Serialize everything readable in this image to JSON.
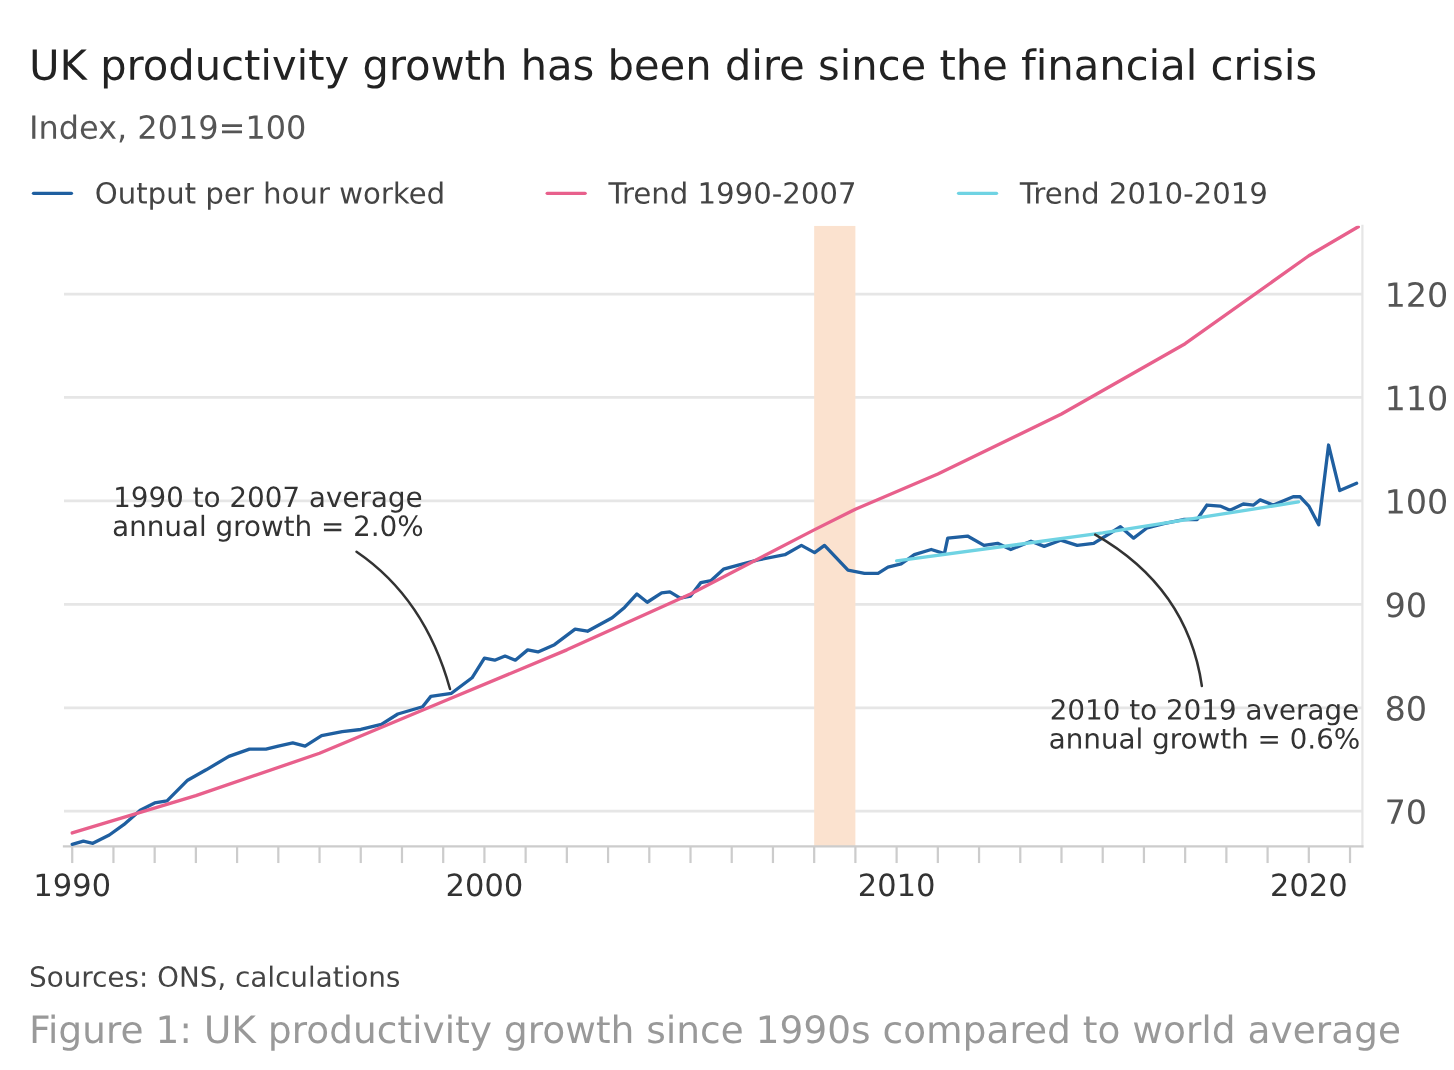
{
  "chart_data": {
    "type": "line",
    "title": "UK productivity growth has been dire since the financial crisis",
    "subtitle": "Index, 2019=100",
    "x": [
      1990.0,
      1990.27,
      1990.5,
      1990.9,
      1991.25,
      1991.65,
      1992.0,
      1992.3,
      1992.8,
      1993.25,
      1993.8,
      1994.3,
      1994.7,
      1995.0,
      1995.35,
      1995.65,
      1996.05,
      1996.55,
      1997.0,
      1997.5,
      1997.9,
      1998.5,
      1998.7,
      1999.2,
      1999.7,
      2000.0,
      2000.25,
      2000.5,
      2000.75,
      2001.05,
      2001.3,
      2001.7,
      2002.2,
      2002.5,
      2003.1,
      2003.4,
      2003.7,
      2003.95,
      2004.3,
      2004.5,
      2004.75,
      2005.0,
      2005.25,
      2005.5,
      2005.8,
      2006.16,
      2006.64,
      2007.29,
      2007.69,
      2008.01,
      2008.25,
      2008.82,
      2009.22,
      2009.55,
      2009.79,
      2010.11,
      2010.43,
      2010.84,
      2011.16,
      2011.24,
      2011.72,
      2012.12,
      2012.45,
      2012.77,
      2013.26,
      2013.58,
      2013.98,
      2014.38,
      2014.78,
      2015.19,
      2015.43,
      2015.75,
      2016.08,
      2016.48,
      2016.96,
      2017.29,
      2017.53,
      2017.85,
      2018.09,
      2018.41,
      2018.66,
      2018.82,
      2019.14,
      2019.62,
      2019.79,
      2020.0,
      2020.24,
      2020.48,
      2020.75,
      2021.16
    ],
    "series": [
      {
        "name": "Output per hour worked",
        "color": "#1f5fa0",
        "values": [
          66.8,
          67.1,
          66.9,
          67.7,
          68.7,
          70.1,
          70.8,
          71.0,
          73.0,
          74.0,
          75.3,
          76.0,
          76.0,
          76.3,
          76.6,
          76.3,
          77.3,
          77.7,
          77.9,
          78.4,
          79.4,
          80.1,
          81.1,
          81.4,
          82.9,
          84.8,
          84.6,
          85.0,
          84.6,
          85.6,
          85.4,
          86.1,
          87.6,
          87.4,
          88.7,
          89.7,
          91.0,
          90.2,
          91.1,
          91.2,
          90.6,
          90.8,
          92.1,
          92.3,
          93.4,
          93.8,
          94.3,
          94.8,
          95.7,
          95.0,
          95.7,
          93.3,
          93.0,
          93.0,
          93.6,
          93.9,
          94.8,
          95.3,
          94.9,
          96.4,
          96.6,
          95.7,
          95.9,
          95.3,
          96.1,
          95.6,
          96.2,
          95.7,
          95.9,
          96.9,
          97.5,
          96.4,
          97.4,
          97.8,
          98.2,
          98.2,
          99.6,
          99.5,
          99.1,
          99.7,
          99.6,
          100.1,
          99.6,
          100.4,
          100.4,
          99.5,
          97.7,
          105.4,
          101.0,
          101.7
        ]
      },
      {
        "name": "Trend 1990-2007",
        "color": "#e8608c",
        "x": [
          1990.0,
          1993.0,
          1996.0,
          1999.0,
          2002.0,
          2005.0,
          2008.0,
          2009.0,
          2011.0,
          2014.0,
          2017.0,
          2020.0,
          2021.2
        ],
        "values": [
          67.9,
          71.5,
          75.6,
          80.6,
          85.6,
          91.0,
          97.2,
          99.2,
          102.6,
          108.4,
          115.2,
          123.7,
          126.5
        ]
      },
      {
        "name": "Trend 2010-2019",
        "color": "#6fd3e3",
        "x": [
          2010.0,
          2015.0,
          2019.75
        ],
        "values": [
          94.2,
          96.9,
          99.9
        ]
      }
    ],
    "xlim": [
      1989.8,
      2021.3
    ],
    "xticks": [
      1990,
      {
        "value": 1991,
        "label": null
      },
      {
        "value": 1992,
        "label": null
      },
      {
        "value": 1993,
        "label": null
      },
      {
        "value": 1994,
        "label": null
      },
      {
        "value": 1995,
        "label": null
      },
      {
        "value": 1996,
        "label": null
      },
      {
        "value": 1997,
        "label": null
      },
      {
        "value": 1998,
        "label": null
      },
      {
        "value": 1999,
        "label": null
      },
      2000,
      {
        "value": 2001,
        "label": null
      },
      {
        "value": 2002,
        "label": null
      },
      {
        "value": 2003,
        "label": null
      },
      {
        "value": 2004,
        "label": null
      },
      {
        "value": 2005,
        "label": null
      },
      {
        "value": 2006,
        "label": null
      },
      {
        "value": 2007,
        "label": null
      },
      {
        "value": 2008,
        "label": null
      },
      {
        "value": 2009,
        "label": null
      },
      2010,
      {
        "value": 2011,
        "label": null
      },
      {
        "value": 2012,
        "label": null
      },
      {
        "value": 2013,
        "label": null
      },
      {
        "value": 2014,
        "label": null
      },
      {
        "value": 2015,
        "label": null
      },
      {
        "value": 2016,
        "label": null
      },
      {
        "value": 2017,
        "label": null
      },
      {
        "value": 2018,
        "label": null
      },
      {
        "value": 2019,
        "label": null
      },
      2020,
      {
        "value": 2021,
        "label": null
      }
    ],
    "ylim": [
      66.6,
      126.6
    ],
    "yticks": [
      70,
      80,
      90,
      100,
      110,
      120
    ],
    "grid": "y",
    "legend": "top left",
    "bands": [
      {
        "axis": "x",
        "from": 2008.0,
        "to": 2009.0,
        "color": "#fbe2cf"
      }
    ],
    "annotations": [
      {
        "text": "1990 to 2007 average\nannual growth = 2.0%",
        "x": 1999.2,
        "y": 81.3
      },
      {
        "text": "2010 to 2019 average\nannual growth = 0.6%",
        "x": 2014.7,
        "y": 97.0
      },
      "Sources: ONS, calculations",
      "Figure 1: UK productivity growth since 1990s compared to world average"
    ]
  }
}
